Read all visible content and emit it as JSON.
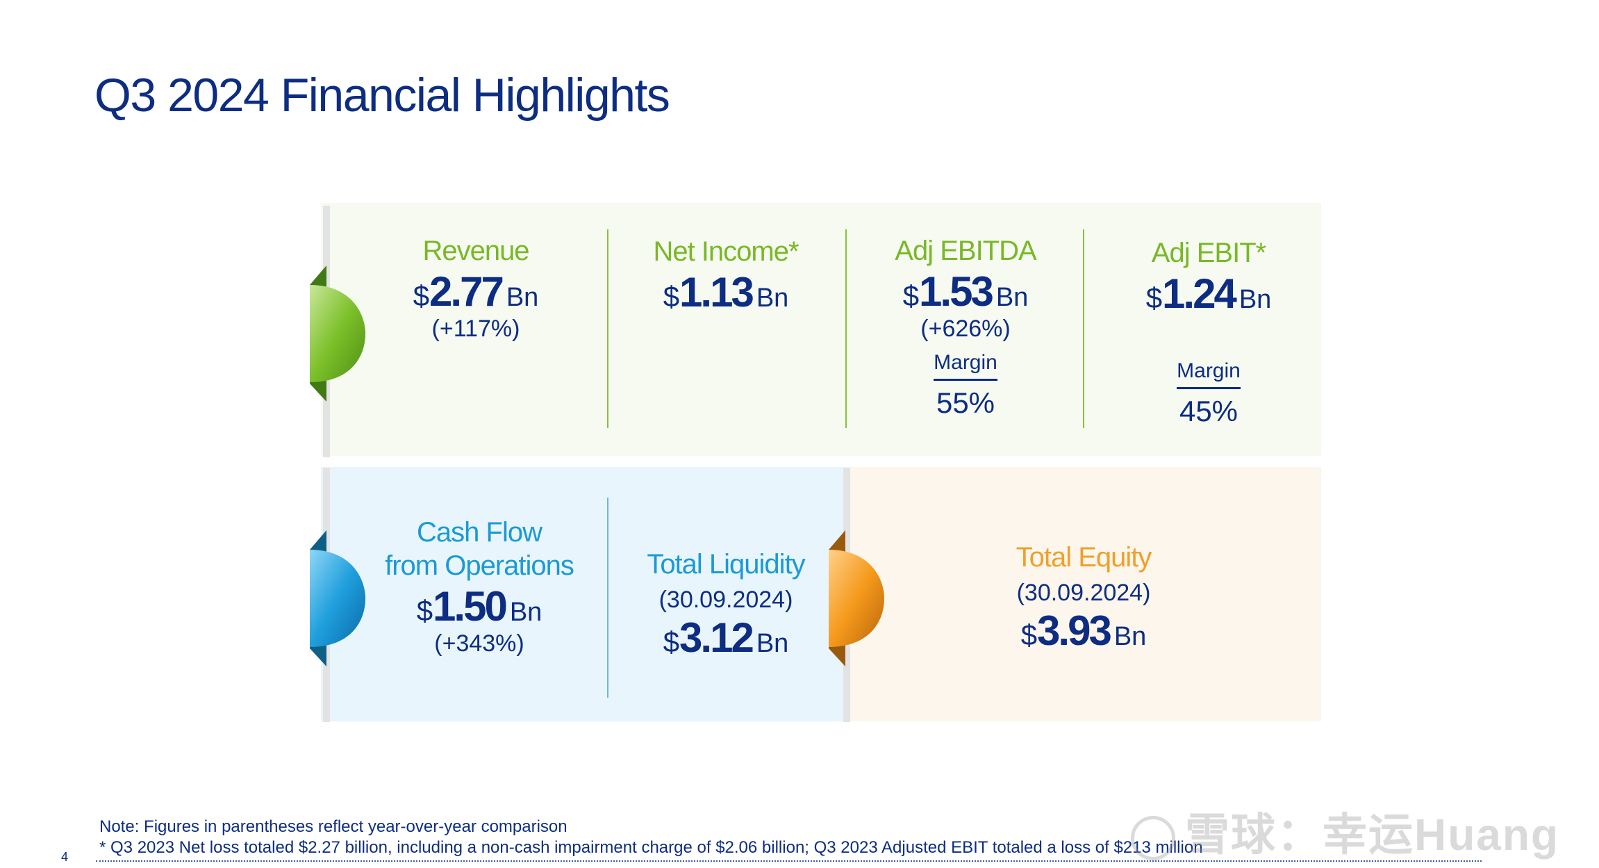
{
  "page": {
    "title": "Q3 2024 Financial Highlights",
    "page_number": "4"
  },
  "top_row": {
    "revenue": {
      "label": "Revenue",
      "currency": "$",
      "value": "2.77",
      "unit": "Bn",
      "change": "(+117%)"
    },
    "net_income": {
      "label": "Net Income*",
      "currency": "$",
      "value": "1.13",
      "unit": "Bn"
    },
    "adj_ebitda": {
      "label": "Adj EBITDA",
      "currency": "$",
      "value": "1.53",
      "unit": "Bn",
      "change": "(+626%)",
      "margin_label": "Margin",
      "margin_value": "55%"
    },
    "adj_ebit": {
      "label": "Adj EBIT*",
      "currency": "$",
      "value": "1.24",
      "unit": "Bn",
      "margin_label": "Margin",
      "margin_value": "45%"
    }
  },
  "bottom_row": {
    "cash_flow": {
      "label_line1": "Cash Flow",
      "label_line2": "from Operations",
      "currency": "$",
      "value": "1.50",
      "unit": "Bn",
      "change": "(+343%)"
    },
    "total_liquidity": {
      "label": "Total Liquidity",
      "date": "(30.09.2024)",
      "currency": "$",
      "value": "3.12",
      "unit": "Bn"
    },
    "total_equity": {
      "label": "Total Equity",
      "date": "(30.09.2024)",
      "currency": "$",
      "value": "3.93",
      "unit": "Bn"
    }
  },
  "notes": {
    "line1": "Note: Figures in parentheses reflect year-over-year comparison",
    "line2": "* Q3 2023 Net loss totaled $2.27 billion, including a non-cash impairment charge of $2.06 billion; Q3 2023 Adjusted EBIT totaled a loss of $213 million"
  },
  "watermark": {
    "text": "雪球：幸运Huang"
  },
  "colors": {
    "navy": "#0d2d82",
    "green": "#79b826",
    "blue": "#1a9ad6",
    "orange": "#f0a02b"
  }
}
